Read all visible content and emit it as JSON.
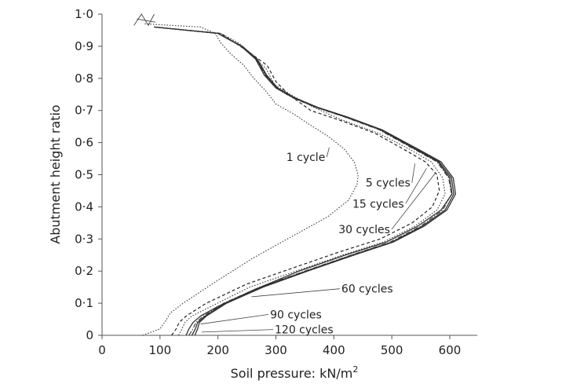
{
  "chart_data": {
    "type": "line",
    "title": "",
    "xlabel": "Soil pressure: kN/m",
    "xlabel_sup": "2",
    "ylabel": "Abutment height ratio",
    "xlim": [
      0,
      650
    ],
    "ylim": [
      0,
      1.0
    ],
    "xticks": [
      0,
      100,
      200,
      300,
      400,
      500,
      600
    ],
    "xtick_labels": [
      "0",
      "100",
      "200",
      "300",
      "400",
      "500",
      "600"
    ],
    "yticks": [
      0,
      0.1,
      0.2,
      0.3,
      0.4,
      0.5,
      0.6,
      0.7,
      0.8,
      0.9,
      1.0
    ],
    "ytick_labels": [
      "0",
      "0·1",
      "0·2",
      "0·3",
      "0·4",
      "0·5",
      "0·6",
      "0·7",
      "0·8",
      "0·9",
      "1·0"
    ],
    "grid": false,
    "legend": "none",
    "series": [
      {
        "name": "1 cycle",
        "style": "dotted",
        "points": [
          [
            70,
            0
          ],
          [
            100,
            0.02
          ],
          [
            108,
            0.04
          ],
          [
            118,
            0.07
          ],
          [
            140,
            0.1
          ],
          [
            190,
            0.16
          ],
          [
            260,
            0.24
          ],
          [
            330,
            0.31
          ],
          [
            390,
            0.37
          ],
          [
            425,
            0.42
          ],
          [
            440,
            0.47
          ],
          [
            442,
            0.5
          ],
          [
            435,
            0.54
          ],
          [
            418,
            0.58
          ],
          [
            390,
            0.62
          ],
          [
            355,
            0.66
          ],
          [
            330,
            0.69
          ],
          [
            300,
            0.72
          ],
          [
            283,
            0.76
          ],
          [
            262,
            0.8
          ],
          [
            245,
            0.84
          ],
          [
            220,
            0.88
          ],
          [
            205,
            0.91
          ],
          [
            195,
            0.94
          ],
          [
            170,
            0.96
          ],
          [
            72,
            0.97
          ]
        ]
      },
      {
        "name": "5 cycles",
        "style": "solid",
        "points": [
          [
            145,
            0
          ],
          [
            150,
            0.02
          ],
          [
            157,
            0.04
          ],
          [
            170,
            0.06
          ],
          [
            200,
            0.09
          ],
          [
            260,
            0.14
          ],
          [
            340,
            0.2
          ],
          [
            420,
            0.25
          ],
          [
            490,
            0.29
          ],
          [
            545,
            0.34
          ],
          [
            585,
            0.39
          ],
          [
            604,
            0.44
          ],
          [
            600,
            0.49
          ],
          [
            580,
            0.54
          ],
          [
            540,
            0.58
          ],
          [
            480,
            0.64
          ],
          [
            420,
            0.68
          ],
          [
            370,
            0.71
          ],
          [
            330,
            0.74
          ],
          [
            300,
            0.77
          ],
          [
            280,
            0.81
          ],
          [
            265,
            0.86
          ],
          [
            240,
            0.9
          ],
          [
            200,
            0.94
          ],
          [
            90,
            0.96
          ]
        ]
      },
      {
        "name": "15 cycles",
        "style": "dashed",
        "points": [
          [
            120,
            0
          ],
          [
            128,
            0.02
          ],
          [
            133,
            0.04
          ],
          [
            145,
            0.06
          ],
          [
            180,
            0.1
          ],
          [
            250,
            0.16
          ],
          [
            330,
            0.21
          ],
          [
            410,
            0.26
          ],
          [
            480,
            0.3
          ],
          [
            535,
            0.35
          ],
          [
            570,
            0.4
          ],
          [
            582,
            0.45
          ],
          [
            578,
            0.5
          ],
          [
            558,
            0.54
          ],
          [
            520,
            0.58
          ],
          [
            470,
            0.63
          ],
          [
            410,
            0.67
          ],
          [
            360,
            0.7
          ],
          [
            322,
            0.75
          ],
          [
            300,
            0.79
          ],
          [
            285,
            0.84
          ],
          [
            255,
            0.88
          ],
          [
            230,
            0.91
          ],
          [
            205,
            0.94
          ],
          [
            90,
            0.96
          ]
        ]
      },
      {
        "name": "30 cycles",
        "style": "dotted",
        "points": [
          [
            132,
            0
          ],
          [
            138,
            0.02
          ],
          [
            143,
            0.04
          ],
          [
            155,
            0.06
          ],
          [
            188,
            0.09
          ],
          [
            255,
            0.15
          ],
          [
            335,
            0.2
          ],
          [
            415,
            0.25
          ],
          [
            485,
            0.29
          ],
          [
            540,
            0.34
          ],
          [
            578,
            0.39
          ],
          [
            592,
            0.44
          ],
          [
            588,
            0.49
          ],
          [
            568,
            0.54
          ],
          [
            530,
            0.58
          ],
          [
            476,
            0.63
          ],
          [
            415,
            0.67
          ],
          [
            365,
            0.71
          ],
          [
            325,
            0.75
          ],
          [
            298,
            0.78
          ],
          [
            283,
            0.83
          ],
          [
            260,
            0.87
          ],
          [
            236,
            0.91
          ],
          [
            205,
            0.94
          ],
          [
            90,
            0.96
          ]
        ]
      },
      {
        "name": "60 cycles",
        "style": "dashdot",
        "points": [
          [
            150,
            0
          ],
          [
            157,
            0.02
          ],
          [
            162,
            0.04
          ],
          [
            175,
            0.06
          ],
          [
            210,
            0.1
          ],
          [
            272,
            0.15
          ],
          [
            350,
            0.2
          ],
          [
            430,
            0.25
          ],
          [
            497,
            0.29
          ],
          [
            550,
            0.34
          ],
          [
            588,
            0.39
          ],
          [
            603,
            0.44
          ],
          [
            598,
            0.49
          ],
          [
            578,
            0.54
          ],
          [
            538,
            0.58
          ],
          [
            478,
            0.64
          ],
          [
            418,
            0.68
          ],
          [
            368,
            0.71
          ],
          [
            328,
            0.74
          ],
          [
            300,
            0.77
          ],
          [
            282,
            0.81
          ],
          [
            266,
            0.86
          ],
          [
            240,
            0.9
          ],
          [
            200,
            0.94
          ],
          [
            90,
            0.96
          ]
        ]
      },
      {
        "name": "90 cycles",
        "style": "solid",
        "points": [
          [
            155,
            0
          ],
          [
            161,
            0.02
          ],
          [
            165,
            0.04
          ],
          [
            178,
            0.06
          ],
          [
            212,
            0.1
          ],
          [
            275,
            0.15
          ],
          [
            352,
            0.2
          ],
          [
            432,
            0.25
          ],
          [
            500,
            0.29
          ],
          [
            553,
            0.34
          ],
          [
            592,
            0.39
          ],
          [
            607,
            0.44
          ],
          [
            603,
            0.49
          ],
          [
            582,
            0.54
          ],
          [
            542,
            0.58
          ],
          [
            481,
            0.64
          ],
          [
            421,
            0.68
          ],
          [
            370,
            0.71
          ],
          [
            330,
            0.74
          ],
          [
            302,
            0.77
          ],
          [
            283,
            0.81
          ],
          [
            267,
            0.86
          ],
          [
            241,
            0.9
          ],
          [
            200,
            0.94
          ],
          [
            90,
            0.96
          ]
        ]
      },
      {
        "name": "120 cycles",
        "style": "solid",
        "points": [
          [
            160,
            0
          ],
          [
            165,
            0.02
          ],
          [
            168,
            0.04
          ],
          [
            180,
            0.06
          ],
          [
            215,
            0.1
          ],
          [
            278,
            0.15
          ],
          [
            355,
            0.2
          ],
          [
            435,
            0.25
          ],
          [
            502,
            0.29
          ],
          [
            556,
            0.34
          ],
          [
            595,
            0.39
          ],
          [
            610,
            0.44
          ],
          [
            606,
            0.49
          ],
          [
            585,
            0.54
          ],
          [
            545,
            0.58
          ],
          [
            483,
            0.64
          ],
          [
            423,
            0.68
          ],
          [
            372,
            0.71
          ],
          [
            332,
            0.74
          ],
          [
            303,
            0.77
          ],
          [
            284,
            0.81
          ],
          [
            268,
            0.86
          ],
          [
            242,
            0.9
          ],
          [
            200,
            0.94
          ],
          [
            90,
            0.96
          ]
        ]
      }
    ],
    "annotations": [
      {
        "text": "1 cycle",
        "x": 318,
        "y": 0.555,
        "target": [
          392,
          0.585
        ]
      },
      {
        "text": "5 cycles",
        "x": 455,
        "y": 0.475,
        "target": [
          540,
          0.535
        ]
      },
      {
        "text": "15 cycles",
        "x": 432,
        "y": 0.41,
        "target": [
          560,
          0.52
        ]
      },
      {
        "text": "30 cycles",
        "x": 408,
        "y": 0.33,
        "target": [
          575,
          0.505
        ]
      },
      {
        "text": "60 cycles",
        "x": 413,
        "y": 0.145,
        "target": [
          258,
          0.12
        ]
      },
      {
        "text": "90 cycles",
        "x": 290,
        "y": 0.065,
        "target": [
          170,
          0.035
        ]
      },
      {
        "text": "120 cycles",
        "x": 298,
        "y": 0.018,
        "target": [
          172,
          0.01
        ]
      }
    ]
  }
}
